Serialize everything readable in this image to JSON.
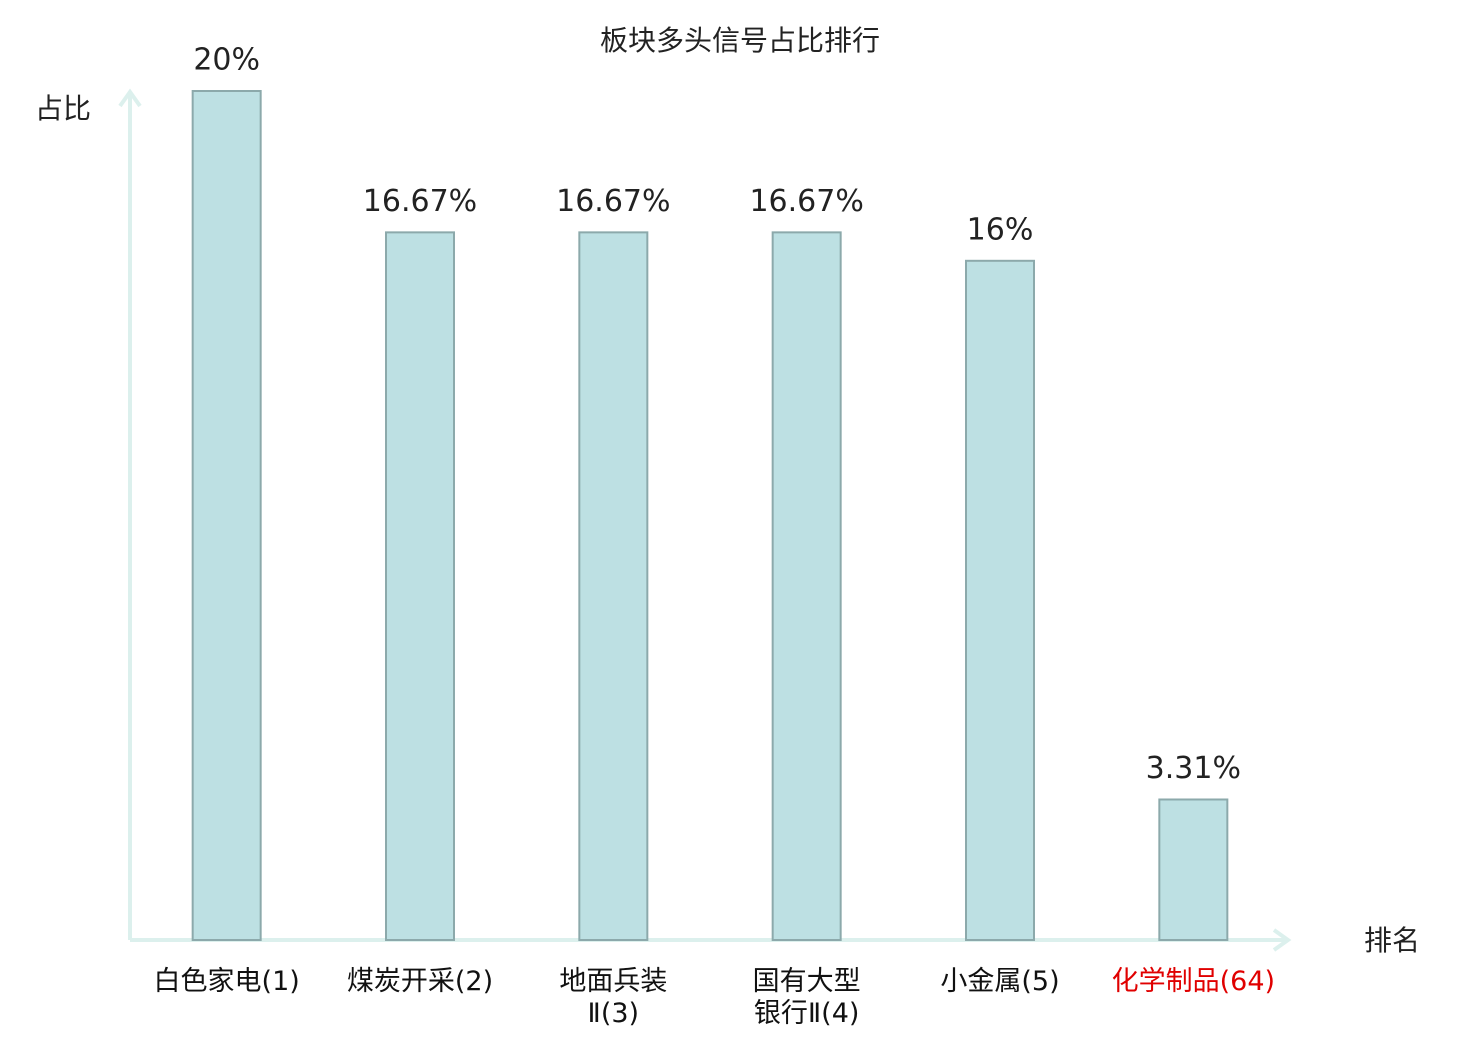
{
  "chart_data": {
    "type": "bar",
    "title": "板块多头信号占比排行",
    "y_label": "占比",
    "x_label": "排名",
    "categories": [
      "白色家电(1)",
      "煤炭开采(2)",
      "地面兵装\nⅡ(3)",
      "国有大型\n银行Ⅱ(4)",
      "小金属(5)",
      "化学制品(64)"
    ],
    "values": [
      20,
      16.67,
      16.67,
      16.67,
      16,
      3.31
    ],
    "value_labels": [
      "20%",
      "16.67%",
      "16.67%",
      "16.67%",
      "16%",
      "3.31%"
    ],
    "color": "#bde0e3",
    "highlight_color": "#e00000",
    "highlight_category": "化学制品(64)",
    "ylim": [
      0,
      20
    ]
  }
}
